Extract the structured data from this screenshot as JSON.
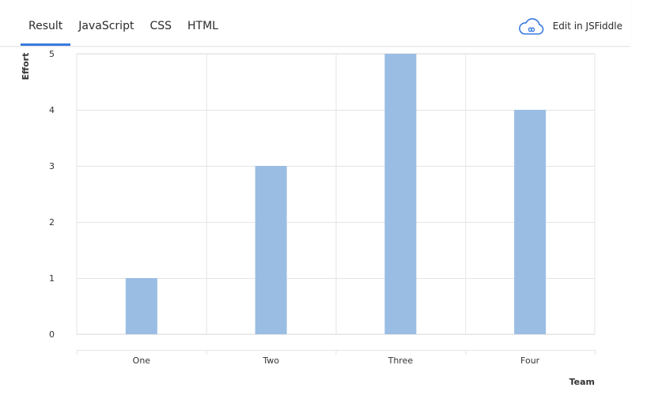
{
  "tabs": [
    {
      "label": "Result",
      "active": true
    },
    {
      "label": "JavaScript",
      "active": false
    },
    {
      "label": "CSS",
      "active": false
    },
    {
      "label": "HTML",
      "active": false
    }
  ],
  "edit_link": {
    "label": "Edit in JSFiddle",
    "icon": "cloud-icon"
  },
  "colors": {
    "bar": "#9abde4",
    "accent": "#3a7be0",
    "grid": "#e5e5e5",
    "cloud": "#3a7be0"
  },
  "chart_data": {
    "type": "bar",
    "categories": [
      "One",
      "Two",
      "Three",
      "Four"
    ],
    "values": [
      1,
      3,
      5,
      4
    ],
    "xlabel": "Team",
    "ylabel": "Effort",
    "ylim": [
      0,
      5
    ],
    "yticks": [
      0,
      1,
      2,
      3,
      4,
      5
    ],
    "grid": true
  }
}
